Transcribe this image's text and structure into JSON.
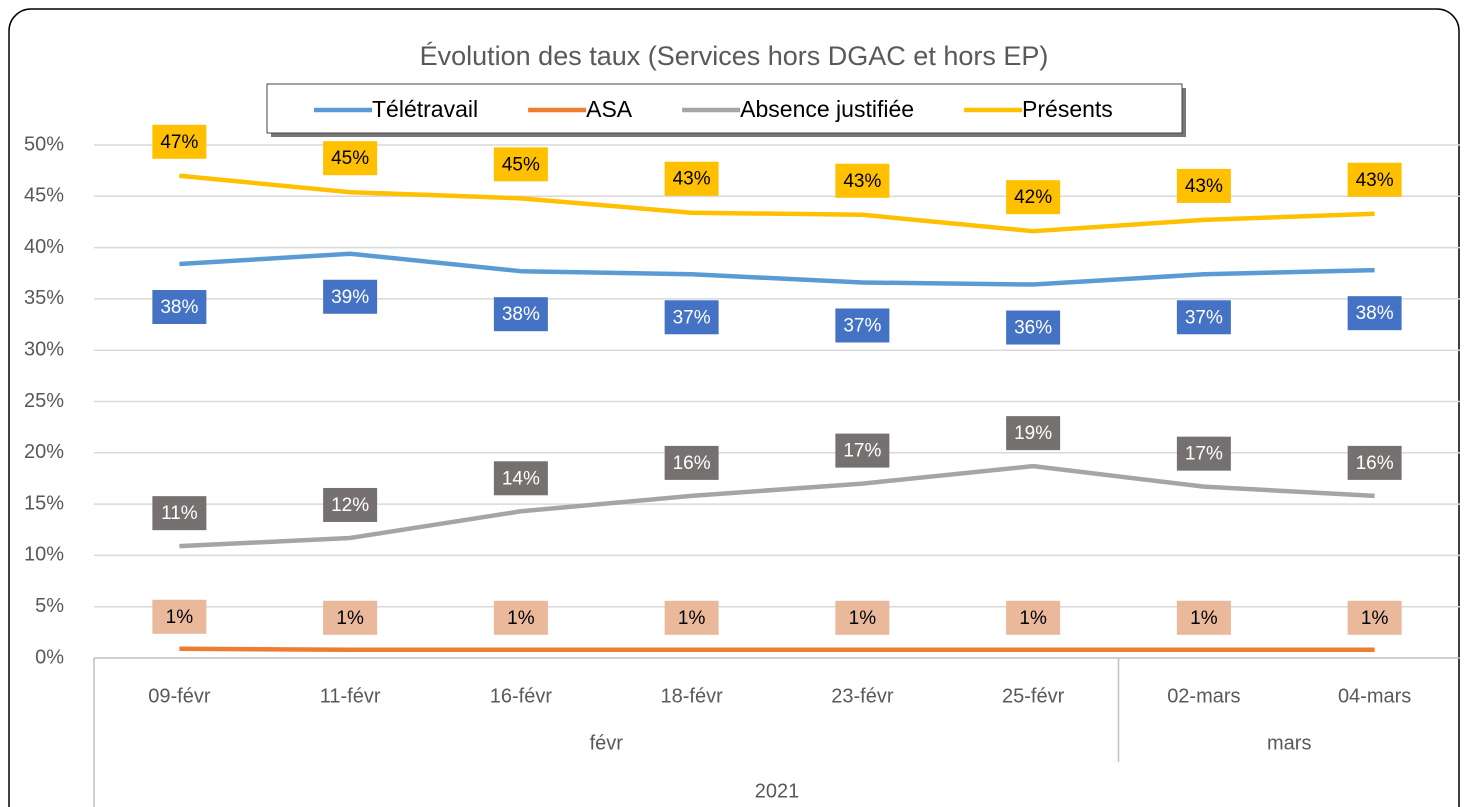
{
  "chart_data": {
    "type": "line",
    "title": "Évolution des taux (Services hors DGAC et hors EP)",
    "categories": [
      "09-févr",
      "11-févr",
      "16-févr",
      "18-févr",
      "23-févr",
      "25-févr",
      "02-mars",
      "04-mars"
    ],
    "groups": [
      {
        "label": "févr",
        "count": 6
      },
      {
        "label": "mars",
        "count": 2
      }
    ],
    "year": "2021",
    "series": [
      {
        "name": "Télétravail",
        "color": "#5b9bd5",
        "label_box_color": "#4472c4",
        "label_text_color": "#ffffff",
        "values": [
          38.4,
          39.4,
          37.7,
          37.4,
          36.6,
          36.4,
          37.4,
          37.8
        ],
        "value_labels": [
          "38%",
          "39%",
          "38%",
          "37%",
          "37%",
          "36%",
          "37%",
          "38%"
        ]
      },
      {
        "name": "ASA",
        "color": "#ed7d31",
        "label_box_color": "#eab89b",
        "label_text_color": "#000000",
        "values": [
          0.9,
          0.8,
          0.8,
          0.8,
          0.8,
          0.8,
          0.8,
          0.8
        ],
        "value_labels": [
          "1%",
          "1%",
          "1%",
          "1%",
          "1%",
          "1%",
          "1%",
          "1%"
        ]
      },
      {
        "name": "Absence justifiée",
        "color": "#a5a5a5",
        "label_box_color": "#767171",
        "label_text_color": "#ffffff",
        "values": [
          10.9,
          11.7,
          14.3,
          15.8,
          17.0,
          18.7,
          16.7,
          15.8
        ],
        "value_labels": [
          "11%",
          "12%",
          "14%",
          "16%",
          "17%",
          "19%",
          "17%",
          "16%"
        ]
      },
      {
        "name": "Présents",
        "color": "#ffc000",
        "label_box_color": "#ffc000",
        "label_text_color": "#000000",
        "values": [
          47.0,
          45.4,
          44.8,
          43.4,
          43.2,
          41.6,
          42.7,
          43.3
        ],
        "value_labels": [
          "47%",
          "45%",
          "45%",
          "43%",
          "43%",
          "42%",
          "43%",
          "43%"
        ]
      }
    ],
    "ylim": [
      0,
      50
    ],
    "yticks": [
      {
        "value": 0,
        "label": "0%"
      },
      {
        "value": 5,
        "label": "5%"
      },
      {
        "value": 10,
        "label": "10%"
      },
      {
        "value": 15,
        "label": "15%"
      },
      {
        "value": 20,
        "label": "20%"
      },
      {
        "value": 25,
        "label": "25%"
      },
      {
        "value": 30,
        "label": "30%"
      },
      {
        "value": 35,
        "label": "35%"
      },
      {
        "value": 40,
        "label": "40%"
      },
      {
        "value": 45,
        "label": "45%"
      },
      {
        "value": 50,
        "label": "50%"
      }
    ],
    "grid": true
  }
}
